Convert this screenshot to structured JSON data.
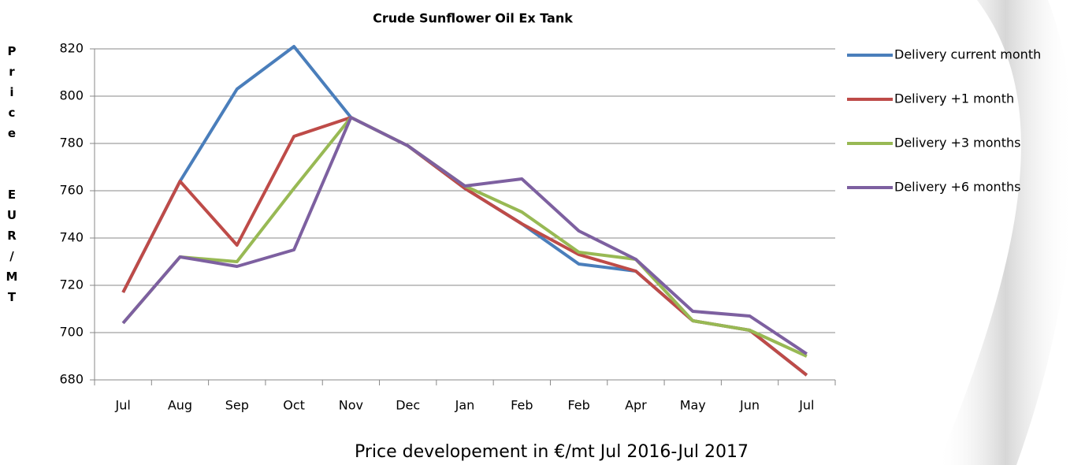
{
  "chart_data": {
    "type": "line",
    "title": "Crude Sunflower Oil Ex Tank",
    "y_label": "Price  EUR/MT",
    "x_label": "Price developement in €/mt Jul 2016-Jul 2017",
    "categories": [
      "Jul",
      "Aug",
      "Sep",
      "Oct",
      "Nov",
      "Dec",
      "Jan",
      "Feb",
      "Feb",
      "Apr",
      "May",
      "Jun",
      "Jul"
    ],
    "series": [
      {
        "name": "Delivery current month",
        "color": "#4a7ebb",
        "values": [
          717,
          764,
          803,
          821,
          791,
          779,
          761,
          746,
          729,
          726,
          705,
          701,
          682
        ]
      },
      {
        "name": "Delivery +1 month",
        "color": "#be4b48",
        "values": [
          717,
          764,
          737,
          783,
          791,
          779,
          761,
          746,
          733,
          726,
          705,
          701,
          682
        ]
      },
      {
        "name": "Delivery +3 months",
        "color": "#98b954",
        "values": [
          704,
          732,
          730,
          761,
          791,
          779,
          762,
          751,
          734,
          731,
          705,
          701,
          690
        ]
      },
      {
        "name": "Delivery +6 months",
        "color": "#7d60a0",
        "values": [
          704,
          732,
          728,
          735,
          791,
          779,
          762,
          765,
          743,
          731,
          709,
          707,
          691
        ]
      }
    ],
    "ylim": [
      680,
      820
    ],
    "yticks": [
      680,
      700,
      720,
      740,
      760,
      780,
      800,
      820
    ],
    "grid": true,
    "legend": "right"
  }
}
